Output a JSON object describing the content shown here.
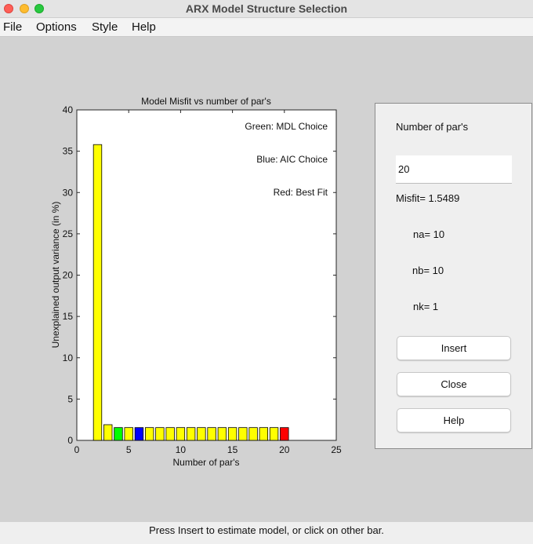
{
  "window": {
    "title": "ARX Model Structure Selection"
  },
  "menu": [
    "File",
    "Options",
    "Style",
    "Help"
  ],
  "chart_data": {
    "type": "bar",
    "title": "Model Misfit vs number of par's",
    "xlabel": "Number of par's",
    "ylabel": "Unexplained output variance (in %)",
    "xlim": [
      0,
      25
    ],
    "ylim": [
      0,
      40
    ],
    "xticks": [
      0,
      5,
      10,
      15,
      20,
      25
    ],
    "yticks": [
      0,
      5,
      10,
      15,
      20,
      25,
      30,
      35,
      40
    ],
    "annotations": [
      "Green: MDL Choice",
      "Blue: AIC Choice",
      "Red: Best Fit"
    ],
    "bars": [
      {
        "x": 2,
        "value": 35.8,
        "color": "#ffff00"
      },
      {
        "x": 3,
        "value": 1.9,
        "color": "#ffff00"
      },
      {
        "x": 4,
        "value": 1.55,
        "color": "#00ff00"
      },
      {
        "x": 5,
        "value": 1.55,
        "color": "#ffff00"
      },
      {
        "x": 6,
        "value": 1.55,
        "color": "#0000ff"
      },
      {
        "x": 7,
        "value": 1.55,
        "color": "#ffff00"
      },
      {
        "x": 8,
        "value": 1.55,
        "color": "#ffff00"
      },
      {
        "x": 9,
        "value": 1.55,
        "color": "#ffff00"
      },
      {
        "x": 10,
        "value": 1.55,
        "color": "#ffff00"
      },
      {
        "x": 11,
        "value": 1.55,
        "color": "#ffff00"
      },
      {
        "x": 12,
        "value": 1.55,
        "color": "#ffff00"
      },
      {
        "x": 13,
        "value": 1.55,
        "color": "#ffff00"
      },
      {
        "x": 14,
        "value": 1.55,
        "color": "#ffff00"
      },
      {
        "x": 15,
        "value": 1.55,
        "color": "#ffff00"
      },
      {
        "x": 16,
        "value": 1.55,
        "color": "#ffff00"
      },
      {
        "x": 17,
        "value": 1.55,
        "color": "#ffff00"
      },
      {
        "x": 18,
        "value": 1.55,
        "color": "#ffff00"
      },
      {
        "x": 19,
        "value": 1.55,
        "color": "#ffff00"
      },
      {
        "x": 20,
        "value": 1.55,
        "color": "#ff0000"
      }
    ]
  },
  "panel": {
    "heading": "Number of par's",
    "input_value": "20",
    "misfit": "Misfit=   1.5489",
    "na": "na=  10",
    "nb": "nb=  10",
    "nk": "nk=  1",
    "buttons": {
      "insert": "Insert",
      "close": "Close",
      "help": "Help"
    }
  },
  "status": "Press Insert to estimate model, or click on other bar."
}
